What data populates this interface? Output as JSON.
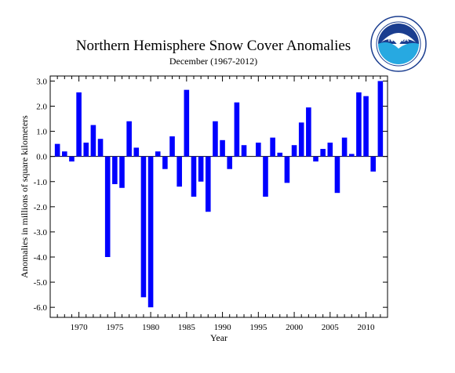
{
  "chart_data": {
    "type": "bar",
    "title": "Northern Hemisphere Snow Cover Anomalies",
    "subtitle": "December (1967-2012)",
    "xlabel": "Year",
    "ylabel": "Anomalies in millions of square kilometers",
    "ylim": [
      -6.4,
      3.2
    ],
    "xlim": [
      1966,
      2013
    ],
    "grid": false,
    "legend": "none",
    "bar_color": "#0000ff",
    "y_ticks": [
      3.0,
      2.0,
      1.0,
      0.0,
      -1.0,
      -2.0,
      -3.0,
      -4.0,
      -5.0,
      -6.0
    ],
    "y_tick_labels": [
      "3.0",
      "2.0",
      "1.0",
      "0.0",
      "-1.0",
      "-2.0",
      "-3.0",
      "-4.0",
      "-5.0",
      "-6.0"
    ],
    "x_ticks": [
      1970,
      1975,
      1980,
      1985,
      1990,
      1995,
      2000,
      2005,
      2010
    ],
    "x_tick_labels": [
      "1970",
      "1975",
      "1980",
      "1985",
      "1990",
      "1995",
      "2000",
      "2005",
      "2010"
    ],
    "categories": [
      1967,
      1968,
      1969,
      1970,
      1971,
      1972,
      1973,
      1974,
      1975,
      1976,
      1977,
      1978,
      1979,
      1980,
      1981,
      1982,
      1983,
      1984,
      1985,
      1986,
      1987,
      1988,
      1989,
      1990,
      1991,
      1992,
      1993,
      1994,
      1995,
      1996,
      1997,
      1998,
      1999,
      2000,
      2001,
      2002,
      2003,
      2004,
      2005,
      2006,
      2007,
      2008,
      2009,
      2010,
      2011,
      2012
    ],
    "values": [
      0.5,
      0.2,
      -0.2,
      2.55,
      0.55,
      1.25,
      0.7,
      -4.0,
      -1.1,
      -1.25,
      1.4,
      0.35,
      -5.6,
      -6.0,
      0.2,
      -0.5,
      0.8,
      -1.2,
      2.65,
      -1.6,
      -1.0,
      -2.2,
      1.4,
      0.65,
      -0.5,
      2.15,
      0.45,
      0.0,
      0.55,
      -1.6,
      0.75,
      0.15,
      -1.05,
      0.45,
      1.35,
      1.95,
      -0.2,
      0.3,
      0.55,
      -1.45,
      0.75,
      0.1,
      2.55,
      2.4,
      -0.6,
      3.0
    ]
  },
  "logo": {
    "text": "NOAA",
    "ring_text": "NATIONAL OCEANIC AND ATMOSPHERIC ADMINISTRATION · U.S. DEPARTMENT OF COMMERCE"
  }
}
